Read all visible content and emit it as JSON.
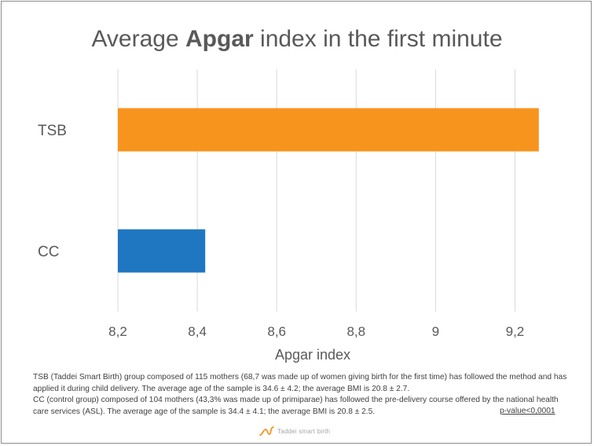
{
  "chart_data": {
    "type": "bar",
    "orientation": "horizontal",
    "title_parts": [
      {
        "text": "Average ",
        "bold": false
      },
      {
        "text": "Apgar",
        "bold": true
      },
      {
        "text": " index in the first minute",
        "bold": false
      }
    ],
    "categories": [
      "TSB",
      "CC"
    ],
    "values": [
      9.26,
      8.42
    ],
    "bar_colors": [
      "#f7941d",
      "#1f77c1"
    ],
    "xlabel": "Apgar index",
    "xlim": [
      8.2,
      9.3
    ],
    "xticks": [
      8.2,
      8.4,
      8.6,
      8.8,
      9.0,
      9.2
    ],
    "xtick_labels": [
      "8,2",
      "8,4",
      "8,6",
      "8,8",
      "9",
      "9,2"
    ],
    "grid": "vertical"
  },
  "footnote": {
    "line1": "TSB (Taddei Smart Birth) group composed of 115 mothers (68,7 was made up of women giving birth for the first time) has followed the method and has applied it during child delivery. The average age of the sample is 34.6 ± 4.2; the average BMI is 20.8 ± 2.7.",
    "line2": "CC (control group) composed of 104 mothers (43,3% was made up of primiparae) has followed the pre-delivery course offered by the national health care services (ASL). The average age of the sample is 34.4 ± 4.1; the average BMI is 20.8 ± 2.5.",
    "pvalue": "p-value<0,0001"
  },
  "logo": {
    "text": "Taddei smart birth",
    "color": "#f7941d"
  }
}
